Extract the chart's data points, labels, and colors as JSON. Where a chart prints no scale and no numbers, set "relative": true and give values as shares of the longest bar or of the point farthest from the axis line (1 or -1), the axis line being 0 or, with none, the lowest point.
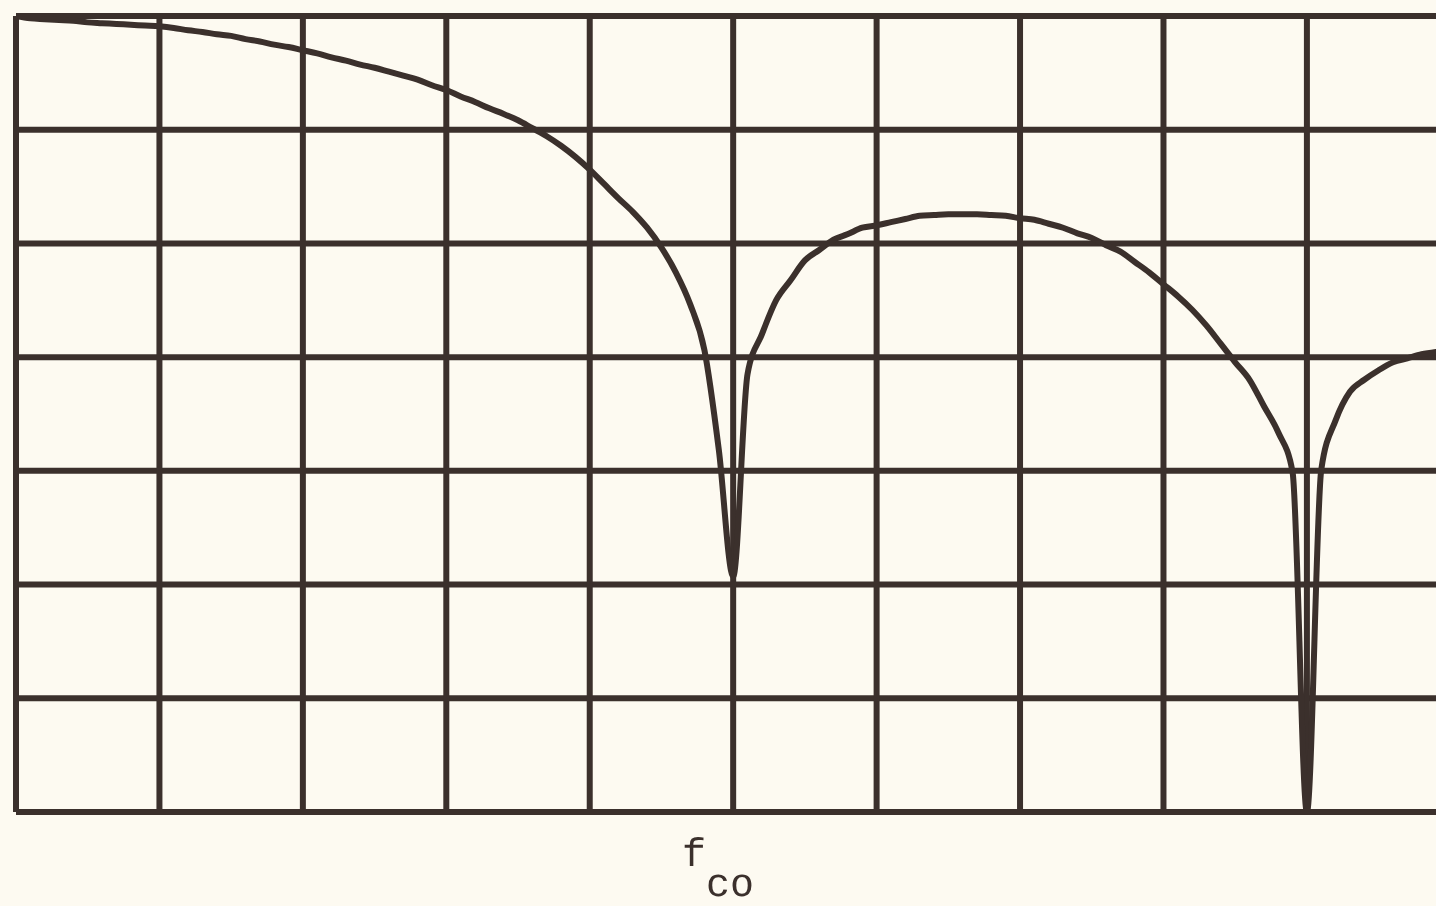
{
  "chart_data": {
    "type": "line",
    "relative": true,
    "grid": true,
    "xlabel": "f$_{co}$",
    "categories": [
      null,
      null,
      null,
      null,
      null,
      null,
      null,
      null,
      null,
      null,
      null,
      null,
      null,
      null,
      null,
      null,
      null,
      null,
      null,
      null,
      null,
      null,
      null,
      null,
      null,
      null,
      null,
      null,
      null,
      null,
      null,
      null,
      null,
      null,
      null,
      null,
      null,
      null,
      null,
      null,
      null,
      null,
      null,
      null,
      null,
      null,
      null,
      null,
      null,
      null,
      null,
      null,
      null,
      null,
      null,
      null,
      null,
      null,
      null,
      null,
      null,
      null,
      null,
      null,
      null,
      null,
      null,
      null,
      null,
      null,
      null,
      null,
      null,
      null,
      null,
      null,
      null,
      null,
      null,
      null,
      null,
      null,
      null,
      null,
      null,
      null,
      null,
      null,
      null,
      null,
      null,
      null,
      null,
      null,
      null,
      null,
      null,
      null,
      null,
      null
    ],
    "series": [
      {
        "color": "#3b302c",
        "values": [
          1.0,
          0.997,
          0.996,
          0.995,
          0.994,
          0.992,
          0.991,
          0.99,
          0.989,
          0.988,
          0.987,
          0.985,
          0.982,
          0.98,
          0.977,
          0.975,
          0.971,
          0.968,
          0.964,
          0.961,
          0.957,
          0.953,
          0.948,
          0.944,
          0.939,
          0.935,
          0.93,
          0.925,
          0.92,
          0.913,
          0.907,
          0.899,
          0.892,
          0.884,
          0.877,
          0.869,
          0.859,
          0.849,
          0.837,
          0.823,
          0.807,
          0.789,
          0.771,
          0.754,
          0.734,
          0.709,
          0.678,
          0.638,
          0.58,
          0.455,
          0.296,
          0.55,
          0.6,
          0.643,
          0.668,
          0.693,
          0.706,
          0.719,
          0.726,
          0.734,
          0.737,
          0.741,
          0.745,
          0.749,
          0.75,
          0.751,
          0.751,
          0.751,
          0.75,
          0.749,
          0.746,
          0.744,
          0.739,
          0.734,
          0.727,
          0.721,
          0.712,
          0.704,
          0.691,
          0.678,
          0.663,
          0.648,
          0.631,
          0.611,
          0.588,
          0.565,
          0.543,
          0.51,
          0.477,
          0.427,
          0.0,
          0.43,
          0.492,
          0.528,
          0.543,
          0.555,
          0.565,
          0.57,
          0.575,
          0.578
        ]
      }
    ]
  }
}
